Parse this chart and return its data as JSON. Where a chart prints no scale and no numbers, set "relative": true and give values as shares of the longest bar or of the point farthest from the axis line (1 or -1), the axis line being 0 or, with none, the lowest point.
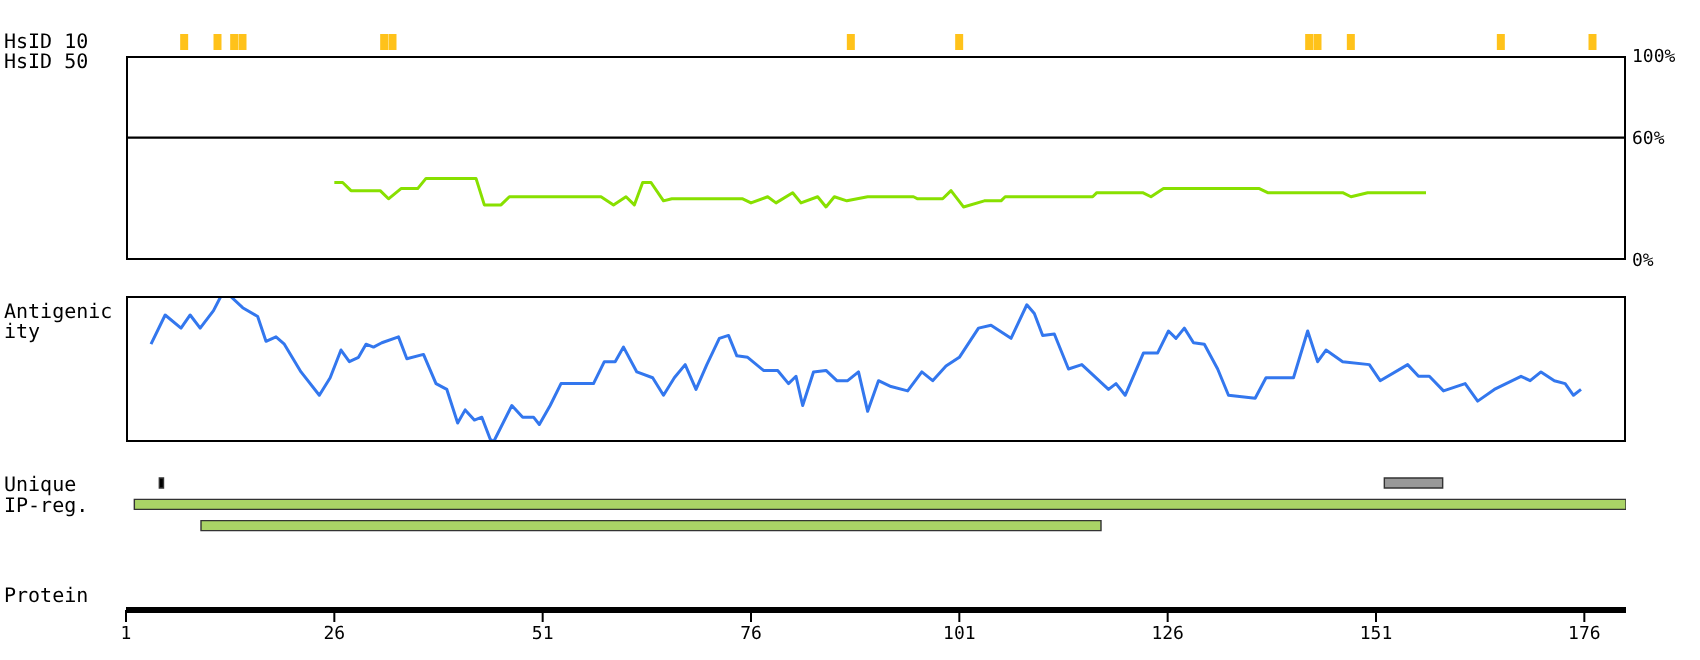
{
  "chart_data": [
    {
      "type": "bar",
      "ylabel": "HsID 10",
      "relative": true,
      "x": [
        8,
        12,
        14,
        15,
        32,
        33,
        88,
        101,
        143,
        144,
        148,
        166,
        177
      ],
      "values": [
        1,
        1,
        1,
        1,
        1,
        1,
        1,
        1,
        1,
        1,
        1,
        1,
        1
      ],
      "color": "#ffc21a",
      "xlim": [
        1,
        181
      ],
      "tick_labels": false
    },
    {
      "type": "line",
      "ylabel": "HsID 50",
      "xlim": [
        1,
        181
      ],
      "ylim": [
        0,
        100
      ],
      "yticks": [
        {
          "value": 0,
          "label": "0%"
        },
        {
          "value": 60,
          "label": "60%"
        },
        {
          "value": 100,
          "label": "100%"
        }
      ],
      "tick_labels": "y",
      "ref_lines": [
        {
          "axis": "y",
          "value": 60,
          "color": "#000000"
        }
      ],
      "series": [
        {
          "color": "#88e000",
          "x": [
            26,
            27,
            28,
            31.5,
            32.5,
            34,
            36,
            37,
            43,
            44,
            46,
            47,
            58,
            59.5,
            61,
            62,
            63,
            64,
            65.5,
            66.5,
            75,
            76,
            78,
            79,
            81,
            82,
            84,
            85,
            86,
            87.5,
            90,
            95.5,
            96,
            99,
            100,
            101.5,
            104,
            106,
            106.5,
            117,
            117.5,
            123,
            124,
            125.5,
            137,
            138,
            147,
            148,
            150,
            157
          ],
          "values": [
            38,
            38,
            34,
            34,
            30,
            35,
            35,
            40,
            40,
            27,
            27,
            31,
            31,
            27,
            31,
            27,
            38,
            38,
            29,
            30,
            30,
            28,
            31,
            28,
            33,
            28,
            31,
            26,
            31,
            29,
            31,
            31,
            30,
            30,
            34,
            26,
            29,
            29,
            31,
            31,
            33,
            33,
            31,
            35,
            35,
            33,
            33,
            31,
            33,
            33
          ]
        }
      ]
    },
    {
      "type": "line",
      "ylabel": "Antigenicity",
      "relative": true,
      "xlim": [
        1,
        181
      ],
      "tick_labels": false,
      "series": [
        {
          "color": "#3377ee",
          "x": [
            4,
            5.7,
            7.6,
            8.7,
            9.9,
            11.5,
            12.4,
            13.5,
            15,
            16.8,
            17.8,
            19,
            20,
            22,
            24.2,
            25.5,
            26.8,
            27.8,
            28.9,
            29.8,
            30.7,
            31.7,
            33.7,
            34.7,
            36.7,
            38.2,
            39.5,
            40.8,
            41.7,
            42.8,
            43.7,
            44.7,
            45.1,
            47.3,
            48.6,
            49.9,
            50.6,
            51.9,
            53.2,
            57.1,
            58.4,
            59.7,
            60.7,
            62.3,
            64.2,
            65.5,
            66.8,
            68.1,
            69.4,
            70.7,
            72.2,
            73.3,
            74.3,
            75.6,
            77.5,
            79.2,
            80.5,
            81.4,
            82.2,
            83.5,
            85,
            86.3,
            87.6,
            88.9,
            90,
            91.3,
            92.8,
            94.8,
            96.5,
            97.8,
            99.4,
            101,
            103.3,
            104.8,
            107.2,
            109.1,
            110,
            111,
            112.4,
            114.1,
            115.7,
            118.9,
            119.8,
            120.9,
            123.1,
            124.8,
            126.1,
            127,
            128,
            129.1,
            130.4,
            132,
            133.3,
            136.5,
            137.8,
            141.1,
            142.8,
            144,
            145,
            147,
            150.2,
            151.5,
            154.8,
            156.1,
            157.4,
            159.1,
            161.7,
            163.2,
            165.2,
            168.4,
            169.5,
            170.8,
            172.4,
            173.7,
            174.7,
            175.6
          ],
          "values": [
            0.67,
            0.87,
            0.78,
            0.87,
            0.78,
            0.9,
            1,
            1,
            0.92,
            0.86,
            0.69,
            0.72,
            0.67,
            0.48,
            0.32,
            0.44,
            0.63,
            0.55,
            0.58,
            0.67,
            0.65,
            0.68,
            0.72,
            0.57,
            0.6,
            0.4,
            0.36,
            0.13,
            0.22,
            0.15,
            0.17,
            0.02,
            0,
            0.25,
            0.17,
            0.17,
            0.12,
            0.25,
            0.4,
            0.4,
            0.55,
            0.55,
            0.65,
            0.48,
            0.44,
            0.32,
            0.44,
            0.53,
            0.36,
            0.53,
            0.71,
            0.73,
            0.59,
            0.58,
            0.49,
            0.49,
            0.4,
            0.45,
            0.25,
            0.48,
            0.49,
            0.42,
            0.42,
            0.48,
            0.21,
            0.42,
            0.38,
            0.35,
            0.48,
            0.42,
            0.52,
            0.58,
            0.78,
            0.8,
            0.71,
            0.94,
            0.88,
            0.73,
            0.74,
            0.5,
            0.53,
            0.36,
            0.4,
            0.32,
            0.61,
            0.61,
            0.76,
            0.71,
            0.78,
            0.68,
            0.67,
            0.5,
            0.32,
            0.3,
            0.44,
            0.44,
            0.76,
            0.55,
            0.63,
            0.55,
            0.53,
            0.42,
            0.53,
            0.45,
            0.45,
            0.35,
            0.4,
            0.28,
            0.36,
            0.45,
            0.42,
            0.48,
            0.42,
            0.4,
            0.32,
            0.36
          ]
        }
      ]
    },
    {
      "type": "bar",
      "orientation": "horizontal",
      "xlabel": "Protein",
      "categories": [
        "Unique",
        "IP-reg.",
        null
      ],
      "xlim": [
        1,
        181
      ],
      "xticks": [
        1,
        26,
        51,
        76,
        101,
        126,
        151,
        176
      ],
      "series": [
        {
          "colors": [
            "#999999",
            "#aad466",
            "#aad466"
          ],
          "base": [
            152,
            2,
            10
          ],
          "values": [
            7,
            179,
            108
          ]
        },
        {
          "color": "#000000",
          "base": [
            5,
            null,
            null
          ],
          "values": [
            0.5,
            null,
            null
          ]
        }
      ]
    }
  ]
}
